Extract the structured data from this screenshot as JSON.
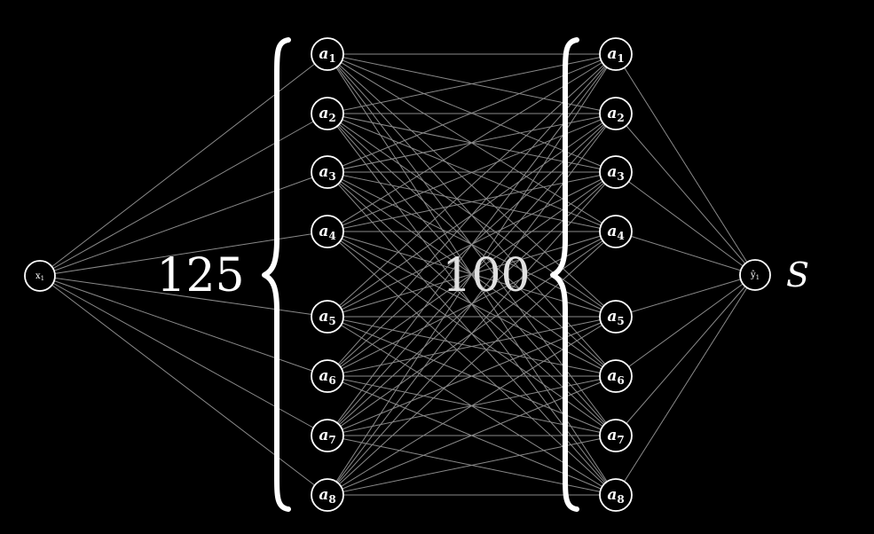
{
  "diagram": {
    "input_node": {
      "label": "x",
      "subscript": "1"
    },
    "hidden_layer_1": {
      "count_label": "125",
      "nodes": [
        {
          "label": "a",
          "subscript": "1"
        },
        {
          "label": "a",
          "subscript": "2"
        },
        {
          "label": "a",
          "subscript": "3"
        },
        {
          "label": "a",
          "subscript": "4"
        },
        {
          "label": "a",
          "subscript": "5"
        },
        {
          "label": "a",
          "subscript": "6"
        },
        {
          "label": "a",
          "subscript": "7"
        },
        {
          "label": "a",
          "subscript": "8"
        }
      ]
    },
    "hidden_layer_2": {
      "count_label": "100",
      "nodes": [
        {
          "label": "a",
          "subscript": "1"
        },
        {
          "label": "a",
          "subscript": "2"
        },
        {
          "label": "a",
          "subscript": "3"
        },
        {
          "label": "a",
          "subscript": "4"
        },
        {
          "label": "a",
          "subscript": "5"
        },
        {
          "label": "a",
          "subscript": "6"
        },
        {
          "label": "a",
          "subscript": "7"
        },
        {
          "label": "a",
          "subscript": "8"
        }
      ]
    },
    "output_node": {
      "label": "ŷ",
      "subscript": "1"
    },
    "output_symbol": "S",
    "colors": {
      "background": "#000000",
      "edge": "#8a8a8a",
      "node_stroke": "#ffffff",
      "text": "#ffffff"
    }
  }
}
